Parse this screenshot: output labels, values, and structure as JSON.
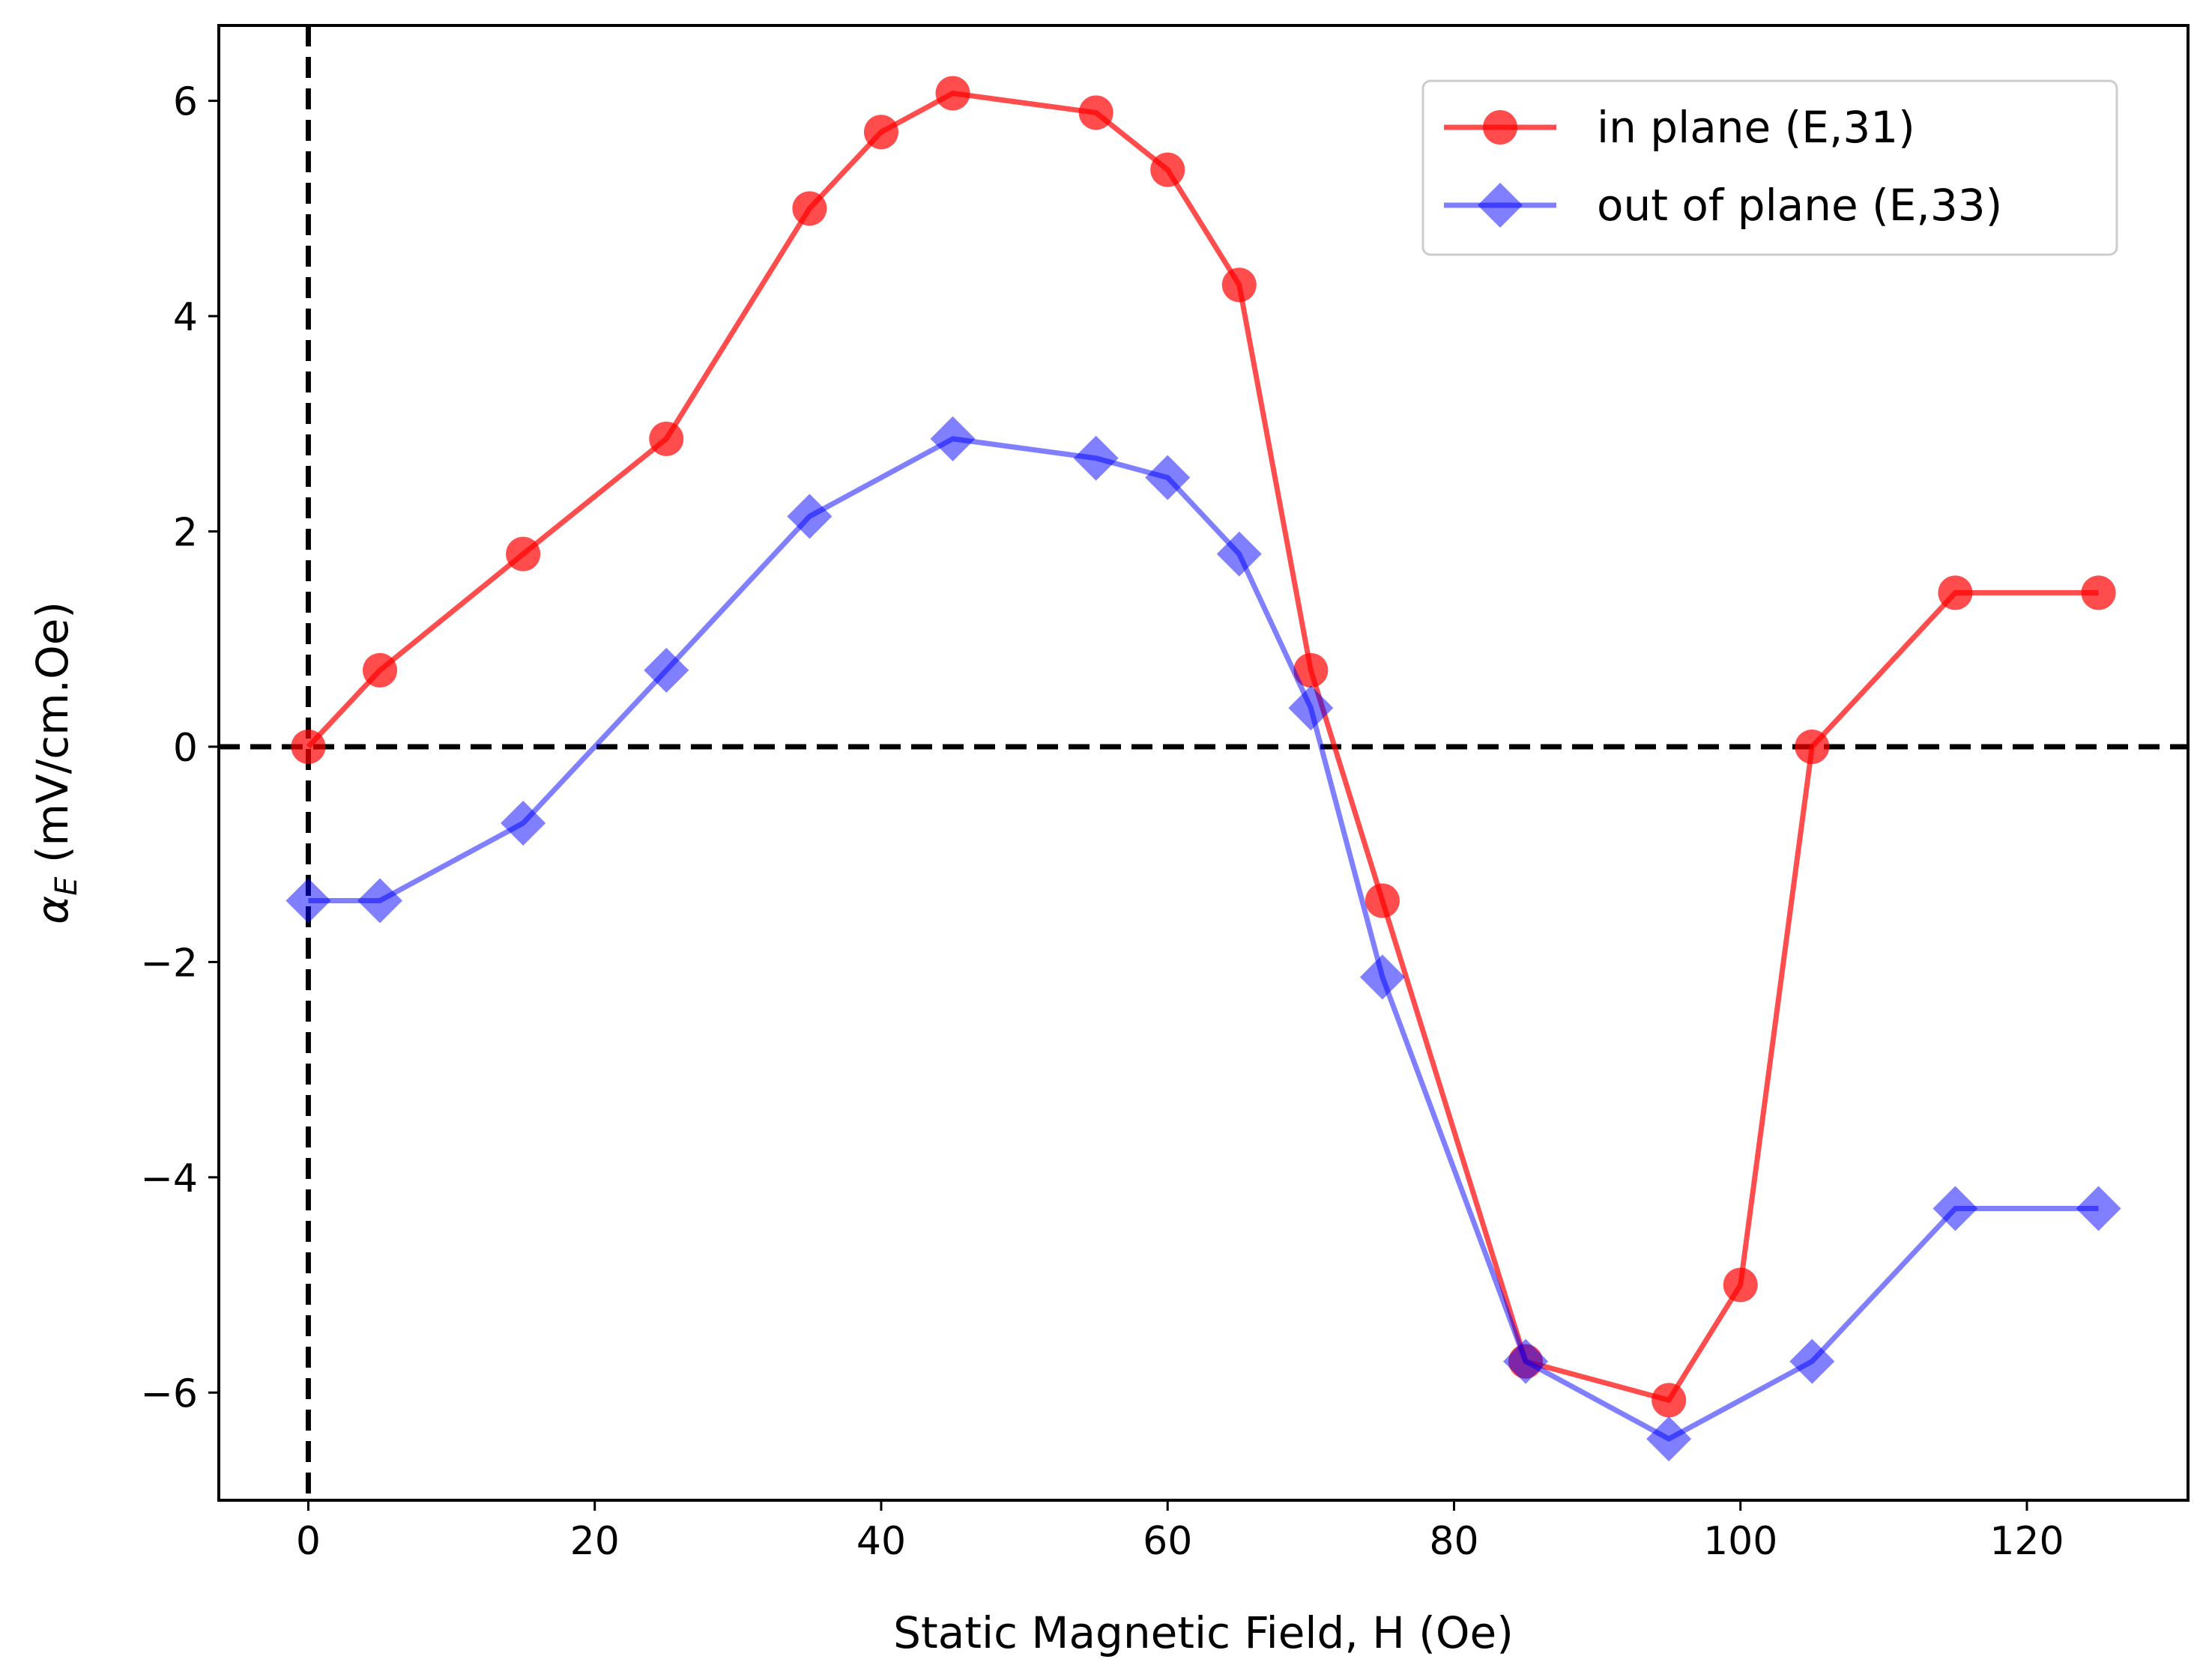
{
  "chart_data": {
    "type": "line",
    "xlabel": "Static Magnetic Field, H (Oe)",
    "ylabel": {
      "symbol": "α",
      "subscript": "E",
      "unit": " (mV/cm.Oe)"
    },
    "xlim": [
      -6.25,
      131.25
    ],
    "ylim": [
      -7.0,
      6.7
    ],
    "xticks": [
      0,
      20,
      40,
      60,
      80,
      100,
      120
    ],
    "yticks": [
      -6,
      -4,
      -2,
      0,
      2,
      4,
      6
    ],
    "xtick_labels": [
      "0",
      "20",
      "40",
      "60",
      "80",
      "100",
      "120"
    ],
    "ytick_labels": [
      "−6",
      "−4",
      "−2",
      "0",
      "2",
      "4",
      "6"
    ],
    "reference_lines": {
      "vertical_x": 0,
      "horizontal_y": 0,
      "style": "dashed",
      "color": "#000000"
    },
    "legend_position": "top-right",
    "series": [
      {
        "name": "in plane (E,31)",
        "color": "#ff0000",
        "marker": "circle",
        "x": [
          0,
          5,
          15,
          25,
          35,
          40,
          45,
          55,
          60,
          65,
          70,
          75,
          85,
          95,
          100,
          105,
          115,
          125
        ],
        "y": [
          0.0,
          0.71,
          1.79,
          2.86,
          5.0,
          5.71,
          6.07,
          5.89,
          5.36,
          4.29,
          0.71,
          -1.43,
          -5.71,
          -6.07,
          -5.0,
          0.0,
          1.43,
          1.43
        ]
      },
      {
        "name": "out of plane (E,33)",
        "color": "#0000ff",
        "marker": "diamond",
        "x": [
          0,
          5,
          15,
          25,
          35,
          45,
          55,
          60,
          65,
          70,
          75,
          85,
          95,
          105,
          115,
          125
        ],
        "y": [
          -1.43,
          -1.43,
          -0.71,
          0.71,
          2.14,
          2.86,
          2.68,
          2.5,
          1.79,
          0.36,
          -2.14,
          -5.71,
          -6.43,
          -5.71,
          -4.29,
          -4.29
        ]
      }
    ]
  }
}
